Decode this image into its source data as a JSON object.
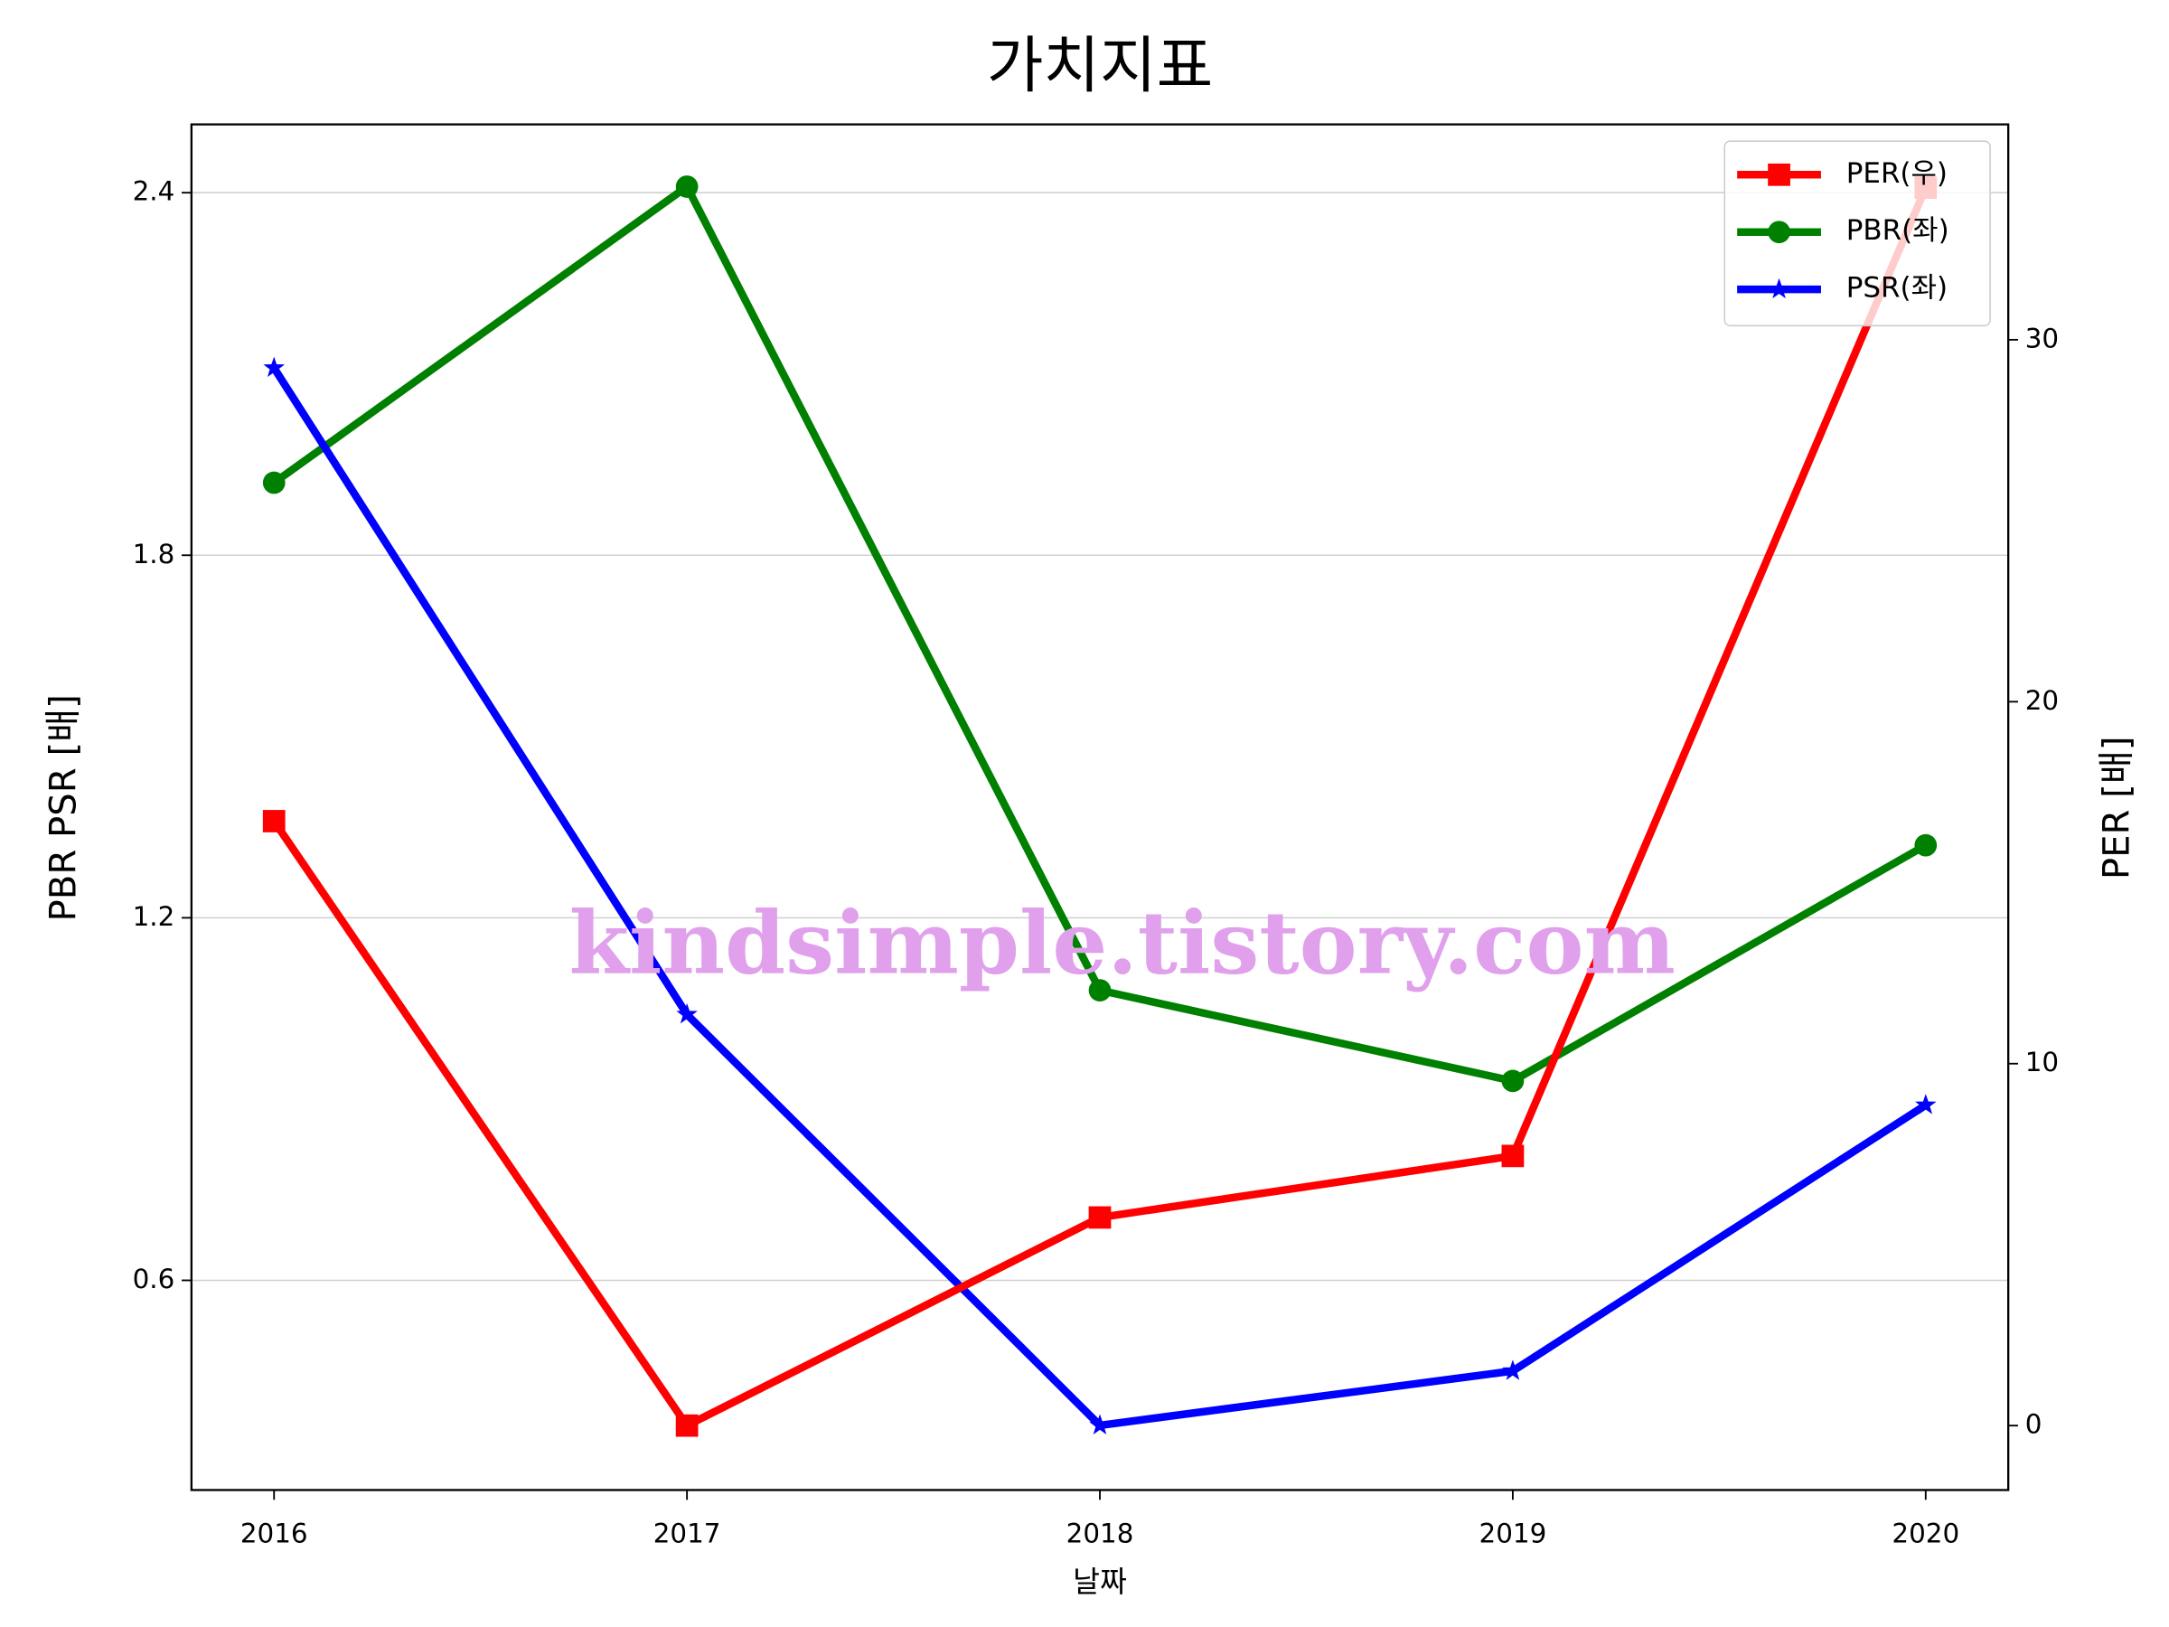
{
  "chart_data": {
    "type": "line",
    "title": "가치지표",
    "xlabel": "날짜",
    "ylabel": "PBR PSR [배]",
    "ylabel_color": "#008000",
    "y2label": "PER [배]",
    "y2label_color": "#ff0000",
    "watermark": "kindsimple.tistory.com",
    "categories": [
      "2016",
      "2017",
      "2018",
      "2019",
      "2020"
    ],
    "series": [
      {
        "name": "PER(우)",
        "color": "#ff0000",
        "marker": "square",
        "axis": "y2",
        "values": [
          16.7,
          0,
          5.75,
          7.45,
          34.2
        ]
      },
      {
        "name": "PBR(좌)",
        "color": "#008000",
        "marker": "circle",
        "values": [
          1.92,
          2.41,
          1.08,
          0.93,
          1.32
        ]
      },
      {
        "name": "PSR(좌)",
        "color": "#0000ff",
        "marker": "star",
        "values": [
          2.11,
          1.04,
          0.36,
          0.45,
          0.89
        ]
      }
    ],
    "ylim": [
      0.253,
      2.513
    ],
    "yticks": [
      0.6,
      1.2,
      1.8,
      2.4
    ],
    "y2lim": [
      -1.78,
      35.95
    ],
    "y2ticks": [
      0,
      10,
      20,
      30
    ],
    "grid": true,
    "legend": "upper right"
  }
}
